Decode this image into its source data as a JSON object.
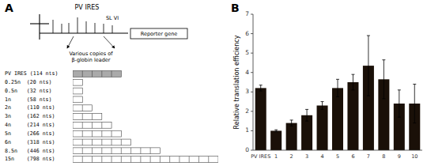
{
  "chart_data": [
    {
      "type": "bar",
      "title": "A",
      "orientation": "horizontal",
      "tick_labels": "y",
      "annotations": [
        "PV IRES",
        "SL VI",
        "Reporter gene",
        "Various copies of\nβ-globin leader"
      ],
      "categories": [
        "PV IRES (114 nts)",
        "0.25n  (20 nts)",
        "0.5n   (32 nts)",
        "1n     (58 nts)",
        "2n     (110 nts)",
        "3n     (162 nts)",
        "4n     (214 nts)",
        "5n     (266 nts)",
        "6n     (318 nts)",
        "8.5n   (446 nts)",
        "15n    (798 nts)"
      ],
      "values": [
        5,
        1,
        1,
        1,
        2,
        3,
        4,
        5,
        6,
        9,
        15
      ],
      "colors": [
        "#aaaaaa",
        "white",
        "white",
        "white",
        "white",
        "white",
        "white",
        "white",
        "white",
        "white",
        "white"
      ],
      "xlim": [
        0,
        15
      ]
    },
    {
      "type": "bar",
      "title": "B",
      "categories": [
        "PV IRES",
        "1",
        "2",
        "3",
        "4",
        "5",
        "6",
        "7",
        "8",
        "9",
        "10"
      ],
      "values": [
        3.2,
        1.0,
        1.4,
        1.8,
        2.3,
        3.2,
        3.5,
        4.35,
        3.65,
        2.4,
        2.4
      ],
      "errors": [
        0.15,
        0.05,
        0.15,
        0.3,
        0.2,
        0.45,
        0.4,
        1.55,
        1.0,
        0.7,
        1.0
      ],
      "color": "#1a1008",
      "ylabel": "Relative translation efficiency",
      "ylim": [
        0,
        7
      ],
      "yticks": [
        0,
        1,
        2,
        3,
        4,
        5,
        6,
        7
      ]
    }
  ]
}
